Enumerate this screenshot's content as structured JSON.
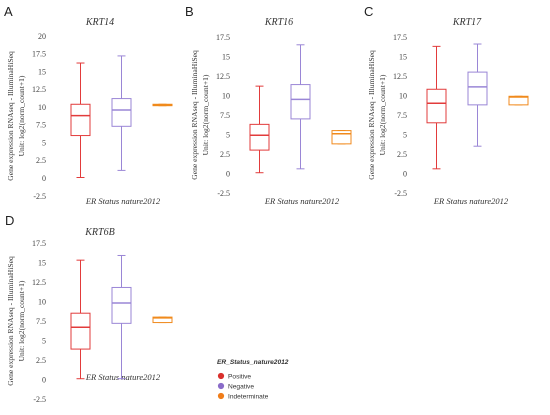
{
  "panels": [
    {
      "letter": "A"
    },
    {
      "letter": "B"
    },
    {
      "letter": "C"
    },
    {
      "letter": "D"
    }
  ],
  "series_colors": [
    "#e23b3b",
    "#9a86d6",
    "#f08a1c"
  ],
  "legend": {
    "title": "ER_Status_nature2012",
    "items": [
      {
        "label": "Positive",
        "color": "#d9302c"
      },
      {
        "label": "Negative",
        "color": "#8a6cc9"
      },
      {
        "label": "Indeterminate",
        "color": "#f07d1a"
      }
    ]
  },
  "chart_data": [
    {
      "type": "box",
      "title": "KRT14",
      "xlabel": "ER Status nature2012",
      "ylabel": "Gene expression RNAseq - IlluminaHiSeq",
      "ylabel2": "Unit: log2(norm_count+1)",
      "ylim": [
        -2.5,
        20
      ],
      "yticks": [
        -2.5,
        0,
        2.5,
        5,
        7.5,
        10,
        12.5,
        15,
        17.5,
        20
      ],
      "tick_labels": [
        "-2.5",
        "0",
        "2.5",
        "5",
        "7.5",
        "10",
        "12.5",
        "15",
        "17.5",
        "20"
      ],
      "boxes": [
        {
          "min": 0.1,
          "q1": 6.0,
          "median": 8.8,
          "q3": 10.4,
          "max": 16.2
        },
        {
          "min": 1.1,
          "q1": 7.3,
          "median": 9.6,
          "q3": 11.2,
          "max": 17.2
        },
        {
          "min": 10.2,
          "q1": 10.2,
          "median": 10.3,
          "q3": 10.4,
          "max": 10.4
        }
      ]
    },
    {
      "type": "box",
      "title": "KRT16",
      "xlabel": "ER Status nature2012",
      "ylabel": "Gene expression RNAseq - IlluminaHiSeq",
      "ylabel2": "Unit: log2(norm_count+1)",
      "ylim": [
        -2.5,
        17.5
      ],
      "yticks": [
        -2.5,
        0,
        2.5,
        5,
        7.5,
        10,
        12.5,
        15,
        17.5
      ],
      "tick_labels": [
        "-2.5",
        "0",
        "2.5",
        "5",
        "7.5",
        "10",
        "12.5",
        "15",
        "17.5"
      ],
      "boxes": [
        {
          "min": 0.1,
          "q1": 3.0,
          "median": 4.9,
          "q3": 6.3,
          "max": 11.2
        },
        {
          "min": 0.6,
          "q1": 7.0,
          "median": 9.5,
          "q3": 11.4,
          "max": 16.5
        },
        {
          "min": 3.8,
          "q1": 3.8,
          "median": 5.1,
          "q3": 5.5,
          "max": 5.5
        }
      ]
    },
    {
      "type": "box",
      "title": "KRT17",
      "xlabel": "ER Status nature2012",
      "ylabel": "Gene expression RNAseq - IlluminaHiSeq",
      "ylabel2": "Unit: log2(norm_count+1)",
      "ylim": [
        -2.5,
        17.5
      ],
      "yticks": [
        -2.5,
        0,
        2.5,
        5,
        7.5,
        10,
        12.5,
        15,
        17.5
      ],
      "tick_labels": [
        "-2.5",
        "0",
        "2.5",
        "5",
        "7.5",
        "10",
        "12.5",
        "15",
        "17.5"
      ],
      "boxes": [
        {
          "min": 0.6,
          "q1": 6.5,
          "median": 9.0,
          "q3": 10.8,
          "max": 16.3
        },
        {
          "min": 3.5,
          "q1": 8.8,
          "median": 11.1,
          "q3": 13.0,
          "max": 16.6
        },
        {
          "min": 8.8,
          "q1": 8.8,
          "median": 9.8,
          "q3": 9.9,
          "max": 9.9
        }
      ]
    },
    {
      "type": "box",
      "title": "KRT6B",
      "xlabel": "ER Status nature2012",
      "ylabel": "Gene expression RNAseq - IlluminaHiSeq",
      "ylabel2": "Unit: log2(norm_count+1)",
      "ylim": [
        -2.5,
        17.5
      ],
      "yticks": [
        -2.5,
        0,
        2.5,
        5,
        7.5,
        10,
        12.5,
        15,
        17.5
      ],
      "tick_labels": [
        "-2.5",
        "0",
        "2.5",
        "5",
        "7.5",
        "10",
        "12.5",
        "15",
        "17.5"
      ],
      "boxes": [
        {
          "min": 0.1,
          "q1": 3.9,
          "median": 6.7,
          "q3": 8.5,
          "max": 15.3
        },
        {
          "min": 0.1,
          "q1": 7.2,
          "median": 9.8,
          "q3": 11.8,
          "max": 15.9
        },
        {
          "min": 7.3,
          "q1": 7.3,
          "median": 7.9,
          "q3": 8.0,
          "max": 8.0
        }
      ]
    }
  ]
}
